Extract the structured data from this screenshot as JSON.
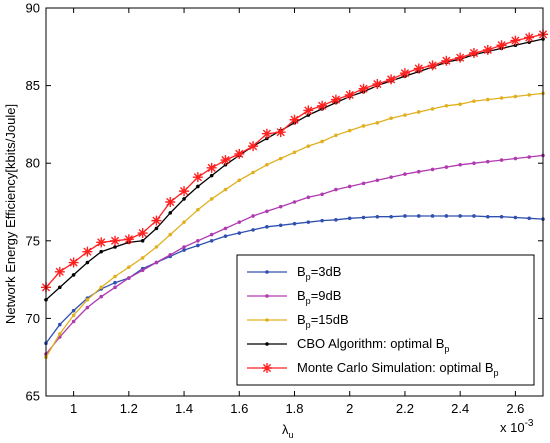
{
  "chart_data": {
    "type": "line",
    "title": "",
    "xlabel": "λ",
    "xlabel_sub": "u",
    "ylabel": "Network Energy Efficiency[kbits/Joule]",
    "x_multiplier_label": "x 10",
    "x_multiplier_exp": "-3",
    "xlim": [
      0.9,
      2.7
    ],
    "ylim": [
      65,
      90
    ],
    "x_ticks": [
      1,
      1.2,
      1.4,
      1.6,
      1.8,
      2,
      2.2,
      2.4,
      2.6
    ],
    "x_tick_labels": [
      "1",
      "1.2",
      "1.4",
      "1.6",
      "1.8",
      "2",
      "2.2",
      "2.4",
      "2.6"
    ],
    "y_ticks": [
      65,
      70,
      75,
      80,
      85,
      90
    ],
    "y_tick_labels": [
      "65",
      "70",
      "75",
      "80",
      "85",
      "90"
    ],
    "grid": false,
    "legend_position": "bottom-right",
    "x": [
      0.9,
      0.95,
      1.0,
      1.05,
      1.1,
      1.15,
      1.2,
      1.25,
      1.3,
      1.35,
      1.4,
      1.45,
      1.5,
      1.55,
      1.6,
      1.65,
      1.7,
      1.75,
      1.8,
      1.85,
      1.9,
      1.95,
      2.0,
      2.05,
      2.1,
      2.15,
      2.2,
      2.25,
      2.3,
      2.35,
      2.4,
      2.45,
      2.5,
      2.55,
      2.6,
      2.65,
      2.7
    ],
    "series": [
      {
        "name_main": "B",
        "name_sub": "p",
        "name_tail": "=3dB",
        "color": "#3050b0",
        "marker": "dot",
        "values": [
          68.4,
          69.6,
          70.5,
          71.3,
          71.9,
          72.3,
          72.6,
          73.2,
          73.6,
          74.0,
          74.4,
          74.7,
          75.0,
          75.3,
          75.5,
          75.7,
          75.9,
          76.0,
          76.1,
          76.2,
          76.3,
          76.35,
          76.45,
          76.5,
          76.55,
          76.55,
          76.6,
          76.6,
          76.6,
          76.6,
          76.6,
          76.6,
          76.55,
          76.55,
          76.5,
          76.45,
          76.4
        ]
      },
      {
        "name_main": "B",
        "name_sub": "p",
        "name_tail": "=9dB",
        "color": "#b03ab0",
        "marker": "dot",
        "values": [
          67.7,
          68.8,
          69.8,
          70.7,
          71.4,
          72.0,
          72.6,
          73.1,
          73.6,
          74.1,
          74.6,
          75.0,
          75.4,
          75.8,
          76.2,
          76.6,
          76.9,
          77.2,
          77.5,
          77.8,
          78.0,
          78.3,
          78.5,
          78.7,
          78.9,
          79.1,
          79.3,
          79.45,
          79.6,
          79.75,
          79.9,
          80.0,
          80.1,
          80.2,
          80.3,
          80.4,
          80.5
        ]
      },
      {
        "name_main": "B",
        "name_sub": "p",
        "name_tail": "=15dB",
        "color": "#e0b020",
        "marker": "dot",
        "values": [
          67.5,
          69.0,
          70.2,
          71.2,
          72.0,
          72.7,
          73.3,
          73.9,
          74.6,
          75.4,
          76.2,
          77.0,
          77.7,
          78.3,
          78.9,
          79.4,
          79.9,
          80.3,
          80.7,
          81.1,
          81.4,
          81.8,
          82.1,
          82.4,
          82.6,
          82.9,
          83.1,
          83.3,
          83.5,
          83.7,
          83.8,
          84.0,
          84.1,
          84.2,
          84.3,
          84.4,
          84.5
        ]
      },
      {
        "name_main": "CBO Algorithm: optimal B",
        "name_sub": "p",
        "name_tail": "",
        "color": "#000000",
        "marker": "dot",
        "values": [
          71.2,
          72.0,
          72.8,
          73.6,
          74.3,
          74.6,
          74.9,
          75.0,
          75.8,
          76.8,
          77.7,
          78.5,
          79.2,
          79.9,
          80.5,
          81.1,
          81.6,
          82.1,
          82.6,
          83.1,
          83.5,
          83.9,
          84.3,
          84.6,
          85.0,
          85.3,
          85.6,
          85.9,
          86.2,
          86.5,
          86.7,
          87.0,
          87.2,
          87.4,
          87.6,
          87.8,
          88.0
        ]
      },
      {
        "name_main": "Monte Carlo Simulation: optimal B",
        "name_sub": "p",
        "name_tail": "",
        "color": "#ff2020",
        "marker": "star",
        "values": [
          72.0,
          73.0,
          73.6,
          74.3,
          74.9,
          75.0,
          75.1,
          75.5,
          76.3,
          77.5,
          78.2,
          79.1,
          79.7,
          80.2,
          80.6,
          81.1,
          81.9,
          82.0,
          82.8,
          83.4,
          83.7,
          84.1,
          84.4,
          84.8,
          85.1,
          85.4,
          85.8,
          86.1,
          86.3,
          86.6,
          86.8,
          87.1,
          87.3,
          87.6,
          87.9,
          88.1,
          88.3
        ]
      }
    ]
  }
}
